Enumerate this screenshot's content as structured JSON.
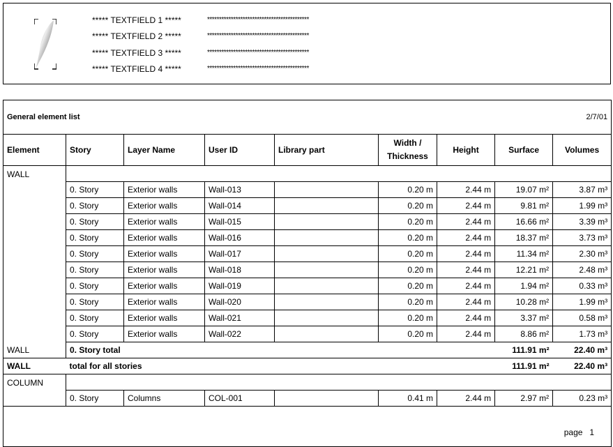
{
  "header": {
    "textfields": [
      "***** TEXTFIELD 1 *****",
      "***** TEXTFIELD 2 *****",
      "***** TEXTFIELD 3 *****",
      "***** TEXTFIELD 4 *****"
    ],
    "placeholder": "*******************************************",
    "logo_icon": "feather-quill-icon"
  },
  "report": {
    "title": "General element list",
    "date": "2/7/01",
    "columns": [
      "Element",
      "Story",
      "Layer Name",
      "User ID",
      "Library part",
      "Width /",
      "Thickness",
      "Height",
      "Surface",
      "Volumes"
    ],
    "groups": [
      {
        "element": "WALL",
        "rows": [
          [
            "0. Story",
            "Exterior walls",
            "Wall-013",
            "",
            "0.20 m",
            "2.44 m",
            "19.07 m²",
            "3.87 m³"
          ],
          [
            "0. Story",
            "Exterior walls",
            "Wall-014",
            "",
            "0.20 m",
            "2.44 m",
            "9.81 m²",
            "1.99 m³"
          ],
          [
            "0. Story",
            "Exterior walls",
            "Wall-015",
            "",
            "0.20 m",
            "2.44 m",
            "16.66 m²",
            "3.39 m³"
          ],
          [
            "0. Story",
            "Exterior walls",
            "Wall-016",
            "",
            "0.20 m",
            "2.44 m",
            "18.37 m²",
            "3.73 m³"
          ],
          [
            "0. Story",
            "Exterior walls",
            "Wall-017",
            "",
            "0.20 m",
            "2.44 m",
            "11.34 m²",
            "2.30 m³"
          ],
          [
            "0. Story",
            "Exterior walls",
            "Wall-018",
            "",
            "0.20 m",
            "2.44 m",
            "12.21 m²",
            "2.48 m³"
          ],
          [
            "0. Story",
            "Exterior walls",
            "Wall-019",
            "",
            "0.20 m",
            "2.44 m",
            "1.94 m²",
            "0.33 m³"
          ],
          [
            "0. Story",
            "Exterior walls",
            "Wall-020",
            "",
            "0.20 m",
            "2.44 m",
            "10.28 m²",
            "1.99 m³"
          ],
          [
            "0. Story",
            "Exterior walls",
            "Wall-021",
            "",
            "0.20 m",
            "2.44 m",
            "3.37 m²",
            "0.58 m³"
          ],
          [
            "0. Story",
            "Exterior walls",
            "Wall-022",
            "",
            "0.20 m",
            "2.44 m",
            "8.86 m²",
            "1.73 m³"
          ]
        ],
        "story_total": {
          "element": "WALL",
          "label": "0. Story total",
          "surface": "111.91 m²",
          "volume": "22.40 m³"
        },
        "grand_total": {
          "element": "WALL",
          "label": "total for all stories",
          "surface": "111.91 m²",
          "volume": "22.40 m³"
        }
      },
      {
        "element": "COLUMN",
        "rows": [
          [
            "0. Story",
            "Columns",
            "COL-001",
            "",
            "0.41 m",
            "2.44 m",
            "2.97 m²",
            "0.23 m³"
          ]
        ]
      }
    ],
    "footer": "page   1"
  }
}
